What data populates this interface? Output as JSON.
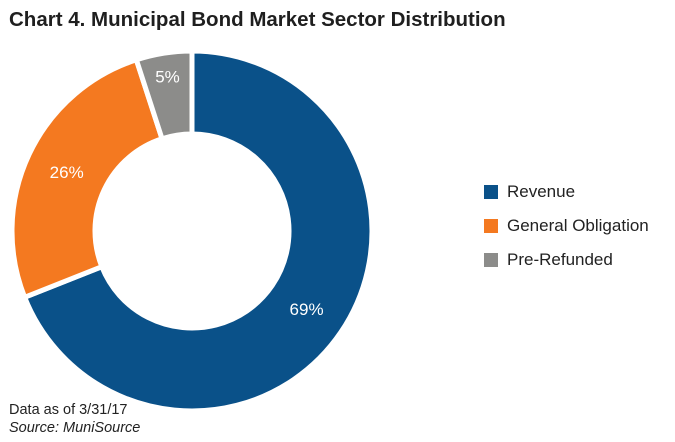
{
  "title": "Chart 4. Municipal Bond Market Sector Distribution",
  "chart_data": {
    "type": "pie",
    "style": "donut",
    "title": "Chart 4. Municipal Bond Market Sector Distribution",
    "slices": [
      {
        "name": "Revenue",
        "value": 69,
        "label": "69%",
        "color": "#0a5189"
      },
      {
        "name": "General Obligation",
        "value": 26,
        "label": "26%",
        "color": "#f47920"
      },
      {
        "name": "Pre-Refunded",
        "value": 5,
        "label": "5%",
        "color": "#8c8c8a"
      }
    ],
    "legend_position": "right"
  },
  "footnote": {
    "date": "Data as of 3/31/17",
    "source": "Source: MuniSource"
  }
}
